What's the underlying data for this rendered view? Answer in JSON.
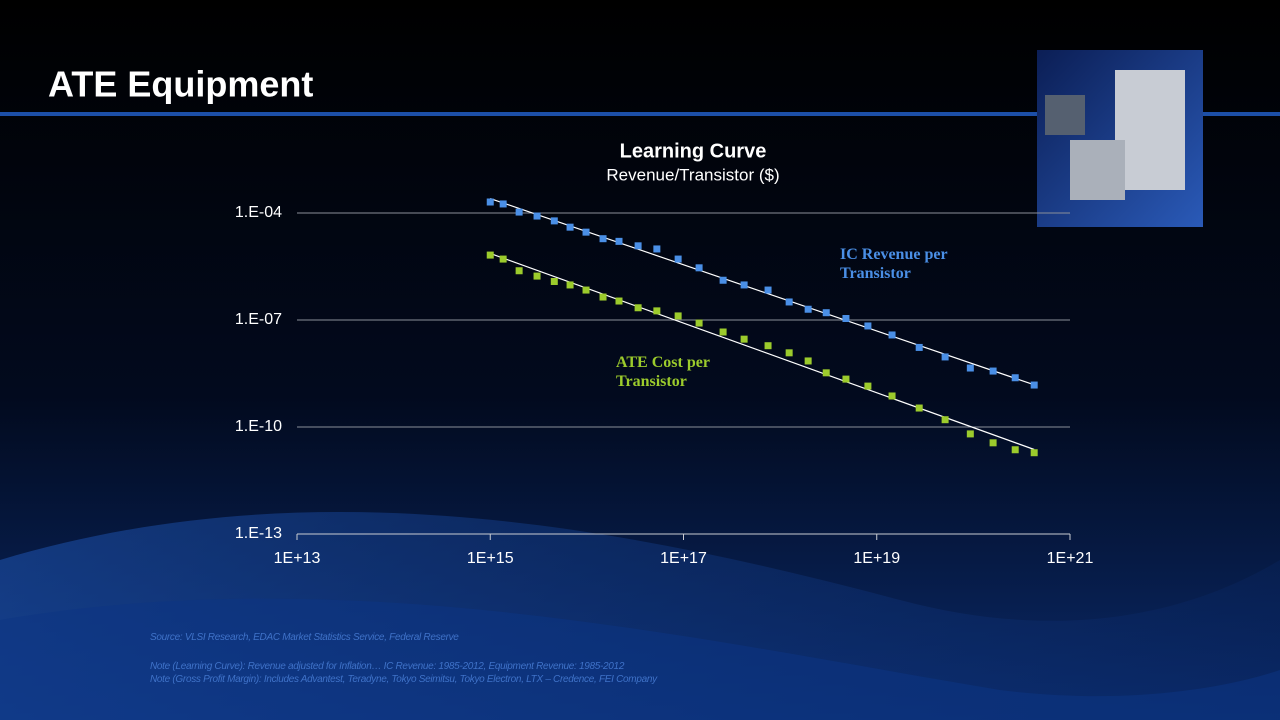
{
  "slide": {
    "title": "ATE Equipment",
    "source": "Source:  VLSI Research, EDAC Market Statistics Service, Federal Reserve",
    "notes": [
      "Note (Learning Curve): Revenue adjusted for Inflation… IC Revenue: 1985-2012, Equipment Revenue: 1985-2012",
      "Note (Gross Profit Margin): Includes Advantest, Teradyne, Tokyo Seimitsu, Tokyo Electron, LTX – Credence, FEI Company"
    ]
  },
  "chart_data": {
    "type": "scatter",
    "title": "Learning  Curve",
    "subtitle": "Revenue/Transistor ($)",
    "x": [
      1000000000000000.0,
      1360000000000000.0,
      1990000000000000.0,
      3050000000000000.0,
      4600000000000000.0,
      6700000000000000.0,
      9800000000000000.0,
      1.47e+16,
      2.15e+16,
      3.39e+16,
      5.3e+16,
      8.8e+16,
      1.45e+17,
      2.57e+17,
      4.24e+17,
      7.5e+17,
      1.24e+18,
      1.95e+18,
      3e+18,
      4.8e+18,
      8.1e+18,
      1.44e+19,
      2.75e+19,
      5.1e+19,
      9.3e+19,
      1.6e+20,
      2.71e+20,
      4.26e+20
    ],
    "series": [
      {
        "name": "IC Revenue per Transistor",
        "color": "#4a8fe6",
        "values": [
          0.000203,
          0.000179,
          0.000106,
          8.2e-05,
          6e-05,
          4e-05,
          2.9e-05,
          1.9e-05,
          1.6e-05,
          1.2e-05,
          9.8e-06,
          5.1e-06,
          2.9e-06,
          1.3e-06,
          9.6e-07,
          6.9e-07,
          3.2e-07,
          2e-07,
          1.6e-07,
          1.1e-07,
          6.8e-08,
          3.8e-08,
          1.7e-08,
          9.2e-09,
          4.5e-09,
          3.7e-09,
          2.4e-09,
          1.5e-09
        ]
      },
      {
        "name": "ATE Cost per Transistor",
        "color": "#9ccb2c",
        "values": [
          6.6e-06,
          5.1e-06,
          2.4e-06,
          1.7e-06,
          1.2e-06,
          9.6e-07,
          6.9e-07,
          4.4e-07,
          3.4e-07,
          2.2e-07,
          1.8e-07,
          1.3e-07,
          8.2e-08,
          4.6e-08,
          2.9e-08,
          1.9e-08,
          1.2e-08,
          7.1e-09,
          3.3e-09,
          2.2e-09,
          1.4e-09,
          7.4e-10,
          3.4e-10,
          1.6e-10,
          6.4e-11,
          3.6e-11,
          2.3e-11,
          1.9e-11
        ]
      }
    ],
    "xscale": "log",
    "yscale": "log",
    "xlim": [
      10000000000000.0,
      1e+21
    ],
    "xticks": [
      {
        "value": 10000000000000.0,
        "label": "1E+13"
      },
      {
        "value": 1000000000000000.0,
        "label": "1E+15"
      },
      {
        "value": 1e+17,
        "label": "1E+17"
      },
      {
        "value": 1e+19,
        "label": "1E+19"
      },
      {
        "value": 1e+21,
        "label": "1E+21"
      }
    ],
    "ylim": [
      1e-13,
      0.001
    ],
    "yticks": [
      {
        "value": 1e-13,
        "label": "1.E-13"
      },
      {
        "value": 1e-10,
        "label": "1.E-10"
      },
      {
        "value": 1e-07,
        "label": "1.E-07"
      },
      {
        "value": 0.0001,
        "label": "1.E-04"
      }
    ],
    "grid": true,
    "trendline": true
  }
}
